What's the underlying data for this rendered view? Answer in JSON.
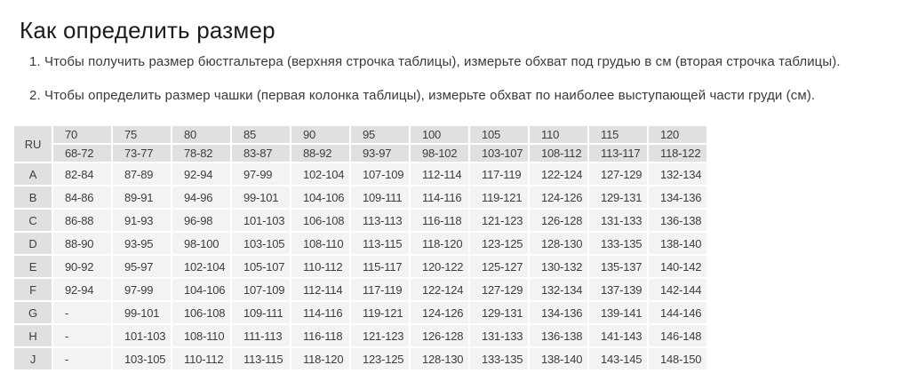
{
  "page": {
    "title": "Как определить размер",
    "instructions": [
      "1. Чтобы получить размер бюстгальтера (верхняя строчка таблицы), измерьте обхват под грудью в см (вторая строчка таблицы).",
      "2. Чтобы определить размер чашки (первая колонка таблицы), измерьте обхват по наиболее выступающей части груди (см)."
    ]
  },
  "size_table": {
    "corner_label": "RU",
    "band_sizes": [
      "70",
      "75",
      "80",
      "85",
      "90",
      "95",
      "100",
      "105",
      "110",
      "115",
      "120"
    ],
    "underbust_ranges": [
      "68-72",
      "73-77",
      "78-82",
      "83-87",
      "88-92",
      "93-97",
      "98-102",
      "103-107",
      "108-112",
      "113-117",
      "118-122"
    ],
    "cup_rows": [
      {
        "cup": "A",
        "values": [
          "82-84",
          "87-89",
          "92-94",
          "97-99",
          "102-104",
          "107-109",
          "112-114",
          "117-119",
          "122-124",
          "127-129",
          "132-134"
        ]
      },
      {
        "cup": "B",
        "values": [
          "84-86",
          "89-91",
          "94-96",
          "99-101",
          "104-106",
          "109-111",
          "114-116",
          "119-121",
          "124-126",
          "129-131",
          "134-136"
        ]
      },
      {
        "cup": "C",
        "values": [
          "86-88",
          "91-93",
          "96-98",
          "101-103",
          "106-108",
          "113-113",
          "116-118",
          "121-123",
          "126-128",
          "131-133",
          "136-138"
        ]
      },
      {
        "cup": "D",
        "values": [
          "88-90",
          "93-95",
          "98-100",
          "103-105",
          "108-110",
          "113-115",
          "118-120",
          "123-125",
          "128-130",
          "133-135",
          "138-140"
        ]
      },
      {
        "cup": "E",
        "values": [
          "90-92",
          "95-97",
          "102-104",
          "105-107",
          "110-112",
          "115-117",
          "120-122",
          "125-127",
          "130-132",
          "135-137",
          "140-142"
        ]
      },
      {
        "cup": "F",
        "values": [
          "92-94",
          "97-99",
          "104-106",
          "107-109",
          "112-114",
          "117-119",
          "122-124",
          "127-129",
          "132-134",
          "137-139",
          "142-144"
        ]
      },
      {
        "cup": "G",
        "values": [
          "-",
          "99-101",
          "106-108",
          "109-111",
          "114-116",
          "119-121",
          "124-126",
          "129-131",
          "134-136",
          "139-141",
          "144-146"
        ]
      },
      {
        "cup": "H",
        "values": [
          "-",
          "101-103",
          "108-110",
          "111-113",
          "116-118",
          "121-123",
          "126-128",
          "131-133",
          "136-138",
          "141-143",
          "146-148"
        ]
      },
      {
        "cup": "J",
        "values": [
          "-",
          "103-105",
          "110-112",
          "113-115",
          "118-120",
          "123-125",
          "128-130",
          "133-135",
          "138-140",
          "143-145",
          "148-150"
        ]
      }
    ]
  },
  "colors": {
    "page_bg": "#ffffff",
    "header_cell_bg": "#e0e0e0",
    "data_cell_bg": "#f3f3f3",
    "table_text": "#3d3d3d",
    "title_text": "#1c1c1c"
  }
}
